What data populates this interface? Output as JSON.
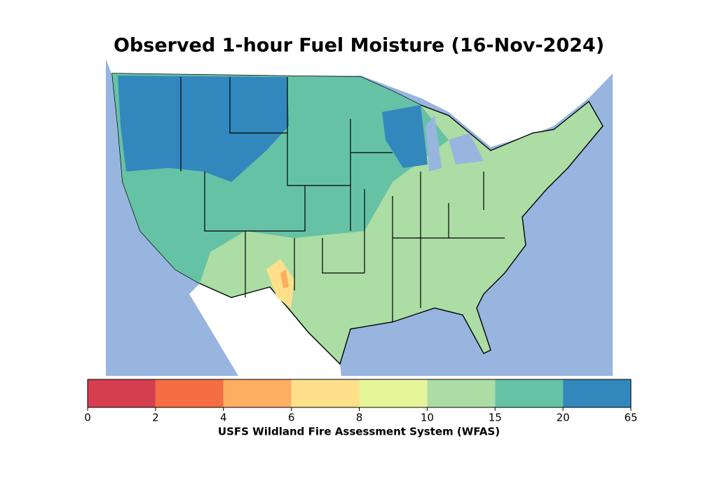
{
  "title": "Observed 1-hour Fuel Moisture (16-Nov-2024)",
  "colorbar": {
    "label": "USFS Wildland Fire Assessment System (WFAS)",
    "bounds": [
      0,
      2,
      4,
      6,
      8,
      10,
      15,
      20,
      65
    ],
    "colors": [
      "#d53e4f",
      "#f46d43",
      "#fdae61",
      "#fee08b",
      "#e6f598",
      "#abdda4",
      "#66c2a5",
      "#3288bd"
    ]
  }
}
